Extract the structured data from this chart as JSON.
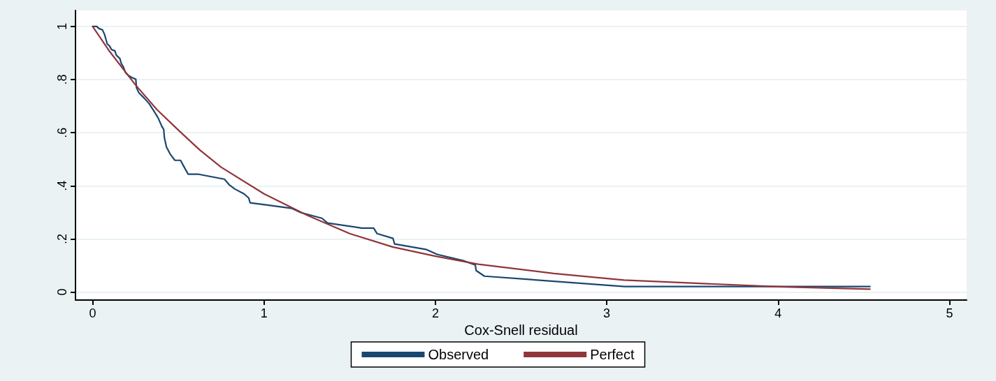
{
  "chart_data": {
    "type": "line",
    "xlabel": "Cox-Snell residual",
    "xlim": [
      -0.1,
      5.1
    ],
    "xticks": [
      0,
      1,
      2,
      3,
      4,
      5
    ],
    "ylim": [
      -0.03,
      1.06
    ],
    "yticks": [
      0,
      {
        "value": 0.2,
        "label": ".2"
      },
      {
        "value": 0.4,
        "label": ".4"
      },
      {
        "value": 0.6,
        "label": ".6"
      },
      {
        "value": 0.8,
        "label": ".8"
      },
      1
    ],
    "grid": "y",
    "legend": "bottom",
    "marker": "none",
    "line_style": "solid",
    "series": [
      {
        "name": "Observed",
        "color": "#1a476f",
        "x": [
          0,
          0.024,
          0.037,
          0.057,
          0.069,
          0.077,
          0.085,
          0.098,
          0.11,
          0.13,
          0.138,
          0.159,
          0.167,
          0.179,
          0.191,
          0.208,
          0.228,
          0.252,
          0.256,
          0.269,
          0.301,
          0.33,
          0.362,
          0.382,
          0.403,
          0.415,
          0.419,
          0.431,
          0.452,
          0.48,
          0.513,
          0.533,
          0.557,
          0.614,
          0.769,
          0.797,
          0.83,
          0.883,
          0.911,
          0.919,
          1.013,
          1.163,
          1.216,
          1.338,
          1.371,
          1.57,
          1.64,
          1.66,
          1.753,
          1.762,
          1.949,
          2.01,
          2.164,
          2.233,
          2.238,
          2.286,
          2.559,
          3.104,
          4.536
        ],
        "values": [
          1,
          1,
          0.992,
          0.987,
          0.971,
          0.953,
          0.934,
          0.927,
          0.913,
          0.908,
          0.892,
          0.879,
          0.861,
          0.848,
          0.827,
          0.816,
          0.808,
          0.801,
          0.769,
          0.751,
          0.73,
          0.709,
          0.677,
          0.656,
          0.625,
          0.612,
          0.58,
          0.546,
          0.52,
          0.496,
          0.496,
          0.472,
          0.444,
          0.444,
          0.425,
          0.404,
          0.388,
          0.37,
          0.354,
          0.336,
          0.328,
          0.315,
          0.299,
          0.278,
          0.26,
          0.241,
          0.241,
          0.22,
          0.202,
          0.181,
          0.16,
          0.142,
          0.118,
          0.102,
          0.081,
          0.06,
          0.047,
          0.021,
          0.021
        ]
      },
      {
        "name": "Perfect",
        "color": "#90353b",
        "x": [
          0,
          0.1,
          0.25,
          0.375,
          0.5,
          0.625,
          0.75,
          1,
          1.25,
          1.5,
          1.75,
          2,
          2.25,
          2.69,
          3.1,
          4.0,
          4.536
        ],
        "values": [
          1,
          0.905,
          0.78,
          0.687,
          0.61,
          0.535,
          0.47,
          0.37,
          0.29,
          0.22,
          0.17,
          0.135,
          0.105,
          0.07,
          0.045,
          0.02,
          0.011
        ]
      }
    ]
  }
}
